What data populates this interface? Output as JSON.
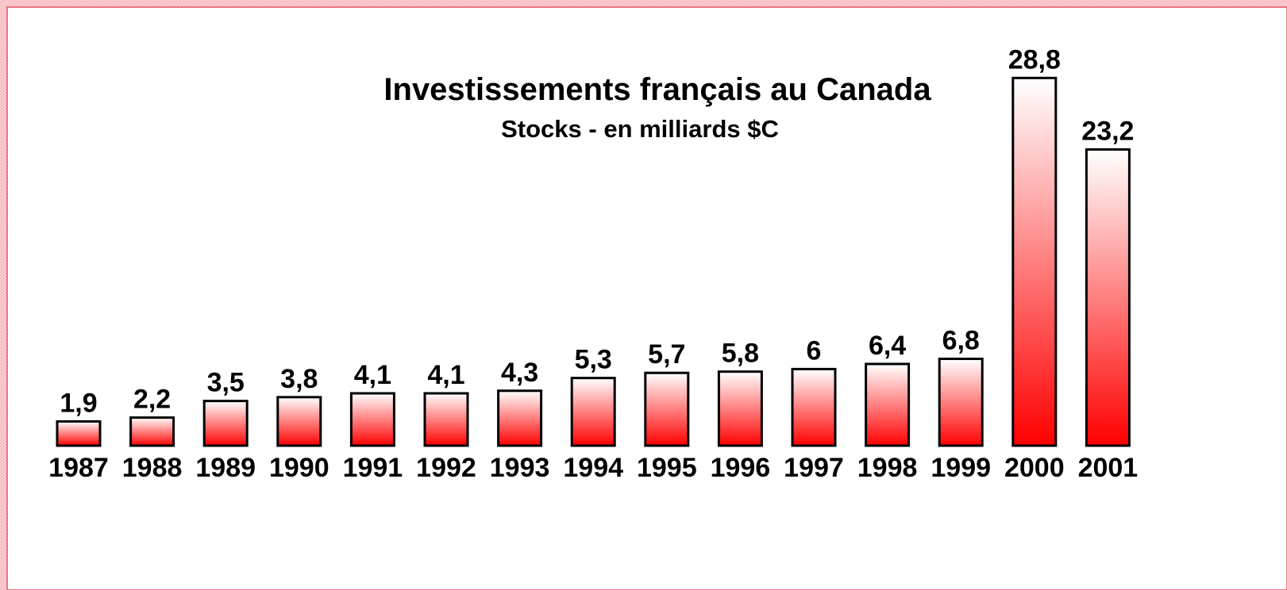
{
  "chart_data": {
    "type": "bar",
    "title": "Investissements français au Canada",
    "subtitle": "Stocks - en milliards $C",
    "categories": [
      "1987",
      "1988",
      "1989",
      "1990",
      "1991",
      "1992",
      "1993",
      "1994",
      "1995",
      "1996",
      "1997",
      "1998",
      "1999",
      "2000",
      "2001"
    ],
    "values": [
      1.9,
      2.2,
      3.5,
      3.8,
      4.1,
      4.1,
      4.3,
      5.3,
      5.7,
      5.8,
      6,
      6.4,
      6.8,
      28.8,
      23.2
    ],
    "value_labels": [
      "1,9",
      "2,2",
      "3,5",
      "3,8",
      "4,1",
      "4,1",
      "4,3",
      "5,3",
      "5,7",
      "5,8",
      "6",
      "6,4",
      "6,8",
      "28,8",
      "23,2"
    ],
    "color": "#ff0000"
  }
}
